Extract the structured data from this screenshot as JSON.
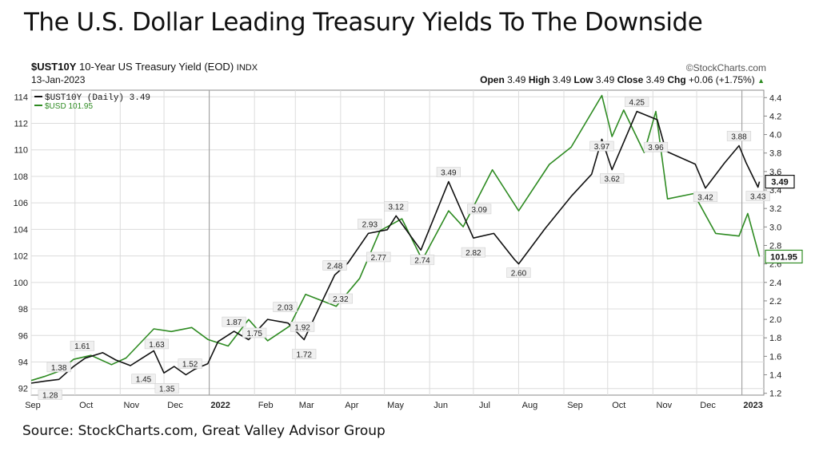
{
  "headline": "The U.S. Dollar Leading Treasury Yields To The Downside",
  "source": "Source: StockCharts.com, Great Valley Advisor Group",
  "header": {
    "symbol": "$UST10Y",
    "description": "10-Year US Treasury Yield (EOD)",
    "exchange": "INDX",
    "watermark": "©StockCharts.com",
    "date": "13-Jan-2023",
    "open_label": "Open",
    "open": "3.49",
    "high_label": "High",
    "high": "3.49",
    "low_label": "Low",
    "low": "3.49",
    "close_label": "Close",
    "close": "3.49",
    "chg_label": "Chg",
    "chg": "+0.06 (+1.75%)",
    "chg_icon": "triangle-up-icon"
  },
  "colors": {
    "yield": "#111111",
    "usd": "#2e8b22",
    "grid": "#dcdcdc"
  },
  "chart_data": {
    "type": "line",
    "title": "",
    "legend": {
      "placement": "top-left",
      "items": [
        "$UST10Y (Daily) 3.49",
        "$USD 101.95"
      ]
    },
    "x_ticks": [
      "Sep",
      "Oct",
      "Nov",
      "Dec",
      "2022",
      "Feb",
      "Mar",
      "Apr",
      "May",
      "Jun",
      "Jul",
      "Aug",
      "Sep",
      "Oct",
      "Nov",
      "Dec",
      "2023"
    ],
    "left_axis": {
      "label": "",
      "range": [
        91.5,
        114.5
      ],
      "ticks": [
        92,
        94,
        96,
        98,
        100,
        102,
        104,
        106,
        108,
        110,
        112,
        114
      ]
    },
    "right_axis": {
      "label": "",
      "range": [
        1.18,
        4.48
      ],
      "ticks": [
        "1.2",
        "1.4",
        "1.6",
        "1.8",
        "2.0",
        "2.2",
        "2.4",
        "2.6",
        "2.8",
        "3.0",
        "3.2",
        "3.4",
        "3.6",
        "3.8",
        "4.0",
        "4.2",
        "4.4"
      ]
    },
    "grid": true,
    "series": [
      {
        "name": "$UST10Y (Daily)",
        "axis": "right",
        "last_value": "3.49",
        "points": [
          [
            "2021-09-01",
            1.31
          ],
          [
            "2021-09-10",
            1.33
          ],
          [
            "2021-09-20",
            1.35
          ],
          [
            "2021-09-30",
            1.49
          ],
          [
            "2021-10-08",
            1.58
          ],
          [
            "2021-10-20",
            1.64
          ],
          [
            "2021-10-29",
            1.56
          ],
          [
            "2021-11-08",
            1.5
          ],
          [
            "2021-11-16",
            1.58
          ],
          [
            "2021-11-24",
            1.66
          ],
          [
            "2021-12-01",
            1.42
          ],
          [
            "2021-12-08",
            1.49
          ],
          [
            "2021-12-16",
            1.4
          ],
          [
            "2021-12-22",
            1.46
          ],
          [
            "2021-12-31",
            1.52
          ],
          [
            "2022-01-07",
            1.76
          ],
          [
            "2022-01-18",
            1.87
          ],
          [
            "2022-01-28",
            1.78
          ],
          [
            "2022-02-10",
            2.0
          ],
          [
            "2022-02-24",
            1.96
          ],
          [
            "2022-03-07",
            1.78
          ],
          [
            "2022-03-18",
            2.15
          ],
          [
            "2022-03-28",
            2.48
          ],
          [
            "2022-04-06",
            2.61
          ],
          [
            "2022-04-20",
            2.93
          ],
          [
            "2022-05-03",
            2.97
          ],
          [
            "2022-05-09",
            3.12
          ],
          [
            "2022-05-26",
            2.75
          ],
          [
            "2022-06-14",
            3.49
          ],
          [
            "2022-06-24",
            3.13
          ],
          [
            "2022-07-01",
            2.88
          ],
          [
            "2022-07-15",
            2.93
          ],
          [
            "2022-07-29",
            2.65
          ],
          [
            "2022-08-01",
            2.6
          ],
          [
            "2022-08-19",
            2.98
          ],
          [
            "2022-09-06",
            3.33
          ],
          [
            "2022-09-20",
            3.57
          ],
          [
            "2022-09-27",
            3.95
          ],
          [
            "2022-10-04",
            3.62
          ],
          [
            "2022-10-21",
            4.25
          ],
          [
            "2022-11-04",
            4.16
          ],
          [
            "2022-11-10",
            3.82
          ],
          [
            "2022-11-30",
            3.68
          ],
          [
            "2022-12-07",
            3.42
          ],
          [
            "2022-12-20",
            3.69
          ],
          [
            "2022-12-30",
            3.88
          ],
          [
            "2023-01-04",
            3.69
          ],
          [
            "2023-01-12",
            3.43
          ],
          [
            "2023-01-13",
            3.49
          ]
        ]
      },
      {
        "name": "$USD",
        "axis": "left",
        "last_value": "101.95",
        "points": [
          [
            "2021-09-01",
            92.6
          ],
          [
            "2021-09-10",
            92.9
          ],
          [
            "2021-09-20",
            93.3
          ],
          [
            "2021-09-30",
            94.2
          ],
          [
            "2021-10-12",
            94.5
          ],
          [
            "2021-10-26",
            93.8
          ],
          [
            "2021-11-05",
            94.3
          ],
          [
            "2021-11-24",
            96.5
          ],
          [
            "2021-12-06",
            96.3
          ],
          [
            "2021-12-20",
            96.6
          ],
          [
            "2021-12-31",
            95.7
          ],
          [
            "2022-01-14",
            95.2
          ],
          [
            "2022-01-28",
            97.2
          ],
          [
            "2022-02-10",
            95.6
          ],
          [
            "2022-02-25",
            96.7
          ],
          [
            "2022-03-08",
            99.1
          ],
          [
            "2022-03-29",
            98.2
          ],
          [
            "2022-04-14",
            100.3
          ],
          [
            "2022-04-28",
            103.9
          ],
          [
            "2022-05-13",
            104.8
          ],
          [
            "2022-05-27",
            101.7
          ],
          [
            "2022-06-14",
            105.4
          ],
          [
            "2022-06-24",
            104.2
          ],
          [
            "2022-07-14",
            108.5
          ],
          [
            "2022-08-01",
            105.4
          ],
          [
            "2022-08-22",
            108.9
          ],
          [
            "2022-09-06",
            110.2
          ],
          [
            "2022-09-27",
            114.1
          ],
          [
            "2022-10-04",
            111.0
          ],
          [
            "2022-10-12",
            113.0
          ],
          [
            "2022-10-26",
            109.8
          ],
          [
            "2022-11-03",
            112.9
          ],
          [
            "2022-11-11",
            106.3
          ],
          [
            "2022-11-29",
            106.7
          ],
          [
            "2022-12-14",
            103.7
          ],
          [
            "2022-12-30",
            103.5
          ],
          [
            "2023-01-05",
            105.2
          ],
          [
            "2023-01-13",
            101.95
          ]
        ]
      }
    ],
    "annotations": [
      {
        "series": "$UST10Y (Daily)",
        "date": "2021-09-20",
        "value": 1.38,
        "text": "1.38",
        "pos": "above"
      },
      {
        "series": "$UST10Y (Daily)",
        "date": "2021-09-14",
        "value": 1.28,
        "text": "1.28",
        "pos": "below"
      },
      {
        "series": "$UST10Y (Daily)",
        "date": "2021-10-06",
        "value": 1.61,
        "text": "1.61",
        "pos": "above"
      },
      {
        "series": "$UST10Y (Daily)",
        "date": "2021-11-17",
        "value": 1.45,
        "text": "1.45",
        "pos": "below"
      },
      {
        "series": "$UST10Y (Daily)",
        "date": "2021-11-26",
        "value": 1.63,
        "text": "1.63",
        "pos": "above"
      },
      {
        "series": "$UST10Y (Daily)",
        "date": "2021-12-09",
        "value": 1.52,
        "text": "1.52",
        "pos": "right"
      },
      {
        "series": "$UST10Y (Daily)",
        "date": "2021-12-03",
        "value": 1.35,
        "text": "1.35",
        "pos": "below"
      },
      {
        "series": "$UST10Y (Daily)",
        "date": "2022-01-18",
        "value": 1.87,
        "text": "1.87",
        "pos": "above"
      },
      {
        "series": "$UST10Y (Daily)",
        "date": "2022-02-01",
        "value": 1.75,
        "text": "1.75",
        "pos": "above"
      },
      {
        "series": "$UST10Y (Daily)",
        "date": "2022-02-22",
        "value": 2.03,
        "text": "2.03",
        "pos": "above"
      },
      {
        "series": "$UST10Y (Daily)",
        "date": "2022-02-24",
        "value": 1.92,
        "text": "1.92",
        "pos": "right"
      },
      {
        "series": "$UST10Y (Daily)",
        "date": "2022-03-07",
        "value": 1.72,
        "text": "1.72",
        "pos": "below"
      },
      {
        "series": "$UST10Y (Daily)",
        "date": "2022-03-28",
        "value": 2.48,
        "text": "2.48",
        "pos": "above"
      },
      {
        "series": "$UST10Y (Daily)",
        "date": "2022-04-01",
        "value": 2.32,
        "text": "2.32",
        "pos": "below"
      },
      {
        "series": "$UST10Y (Daily)",
        "date": "2022-04-21",
        "value": 2.93,
        "text": "2.93",
        "pos": "above"
      },
      {
        "series": "$UST10Y (Daily)",
        "date": "2022-04-27",
        "value": 2.77,
        "text": "2.77",
        "pos": "below"
      },
      {
        "series": "$UST10Y (Daily)",
        "date": "2022-05-09",
        "value": 3.12,
        "text": "3.12",
        "pos": "above"
      },
      {
        "series": "$UST10Y (Daily)",
        "date": "2022-05-27",
        "value": 2.74,
        "text": "2.74",
        "pos": "below"
      },
      {
        "series": "$UST10Y (Daily)",
        "date": "2022-06-14",
        "value": 3.49,
        "text": "3.49",
        "pos": "above"
      },
      {
        "series": "$UST10Y (Daily)",
        "date": "2022-07-05",
        "value": 3.09,
        "text": "3.09",
        "pos": "above"
      },
      {
        "series": "$UST10Y (Daily)",
        "date": "2022-07-01",
        "value": 2.82,
        "text": "2.82",
        "pos": "below"
      },
      {
        "series": "$UST10Y (Daily)",
        "date": "2022-08-01",
        "value": 2.6,
        "text": "2.60",
        "pos": "below"
      },
      {
        "series": "$UST10Y (Daily)",
        "date": "2022-09-27",
        "value": 3.97,
        "text": "3.97",
        "pos": "below"
      },
      {
        "series": "$UST10Y (Daily)",
        "date": "2022-10-04",
        "value": 3.62,
        "text": "3.62",
        "pos": "below"
      },
      {
        "series": "$UST10Y (Daily)",
        "date": "2022-10-21",
        "value": 4.25,
        "text": "4.25",
        "pos": "above"
      },
      {
        "series": "$UST10Y (Daily)",
        "date": "2022-11-03",
        "value": 3.96,
        "text": "3.96",
        "pos": "below"
      },
      {
        "series": "$UST10Y (Daily)",
        "date": "2022-12-07",
        "value": 3.42,
        "text": "3.42",
        "pos": "below"
      },
      {
        "series": "$UST10Y (Daily)",
        "date": "2022-12-30",
        "value": 3.88,
        "text": "3.88",
        "pos": "above"
      },
      {
        "series": "$UST10Y (Daily)",
        "date": "2023-01-12",
        "value": 3.43,
        "text": "3.43",
        "pos": "below"
      }
    ]
  }
}
